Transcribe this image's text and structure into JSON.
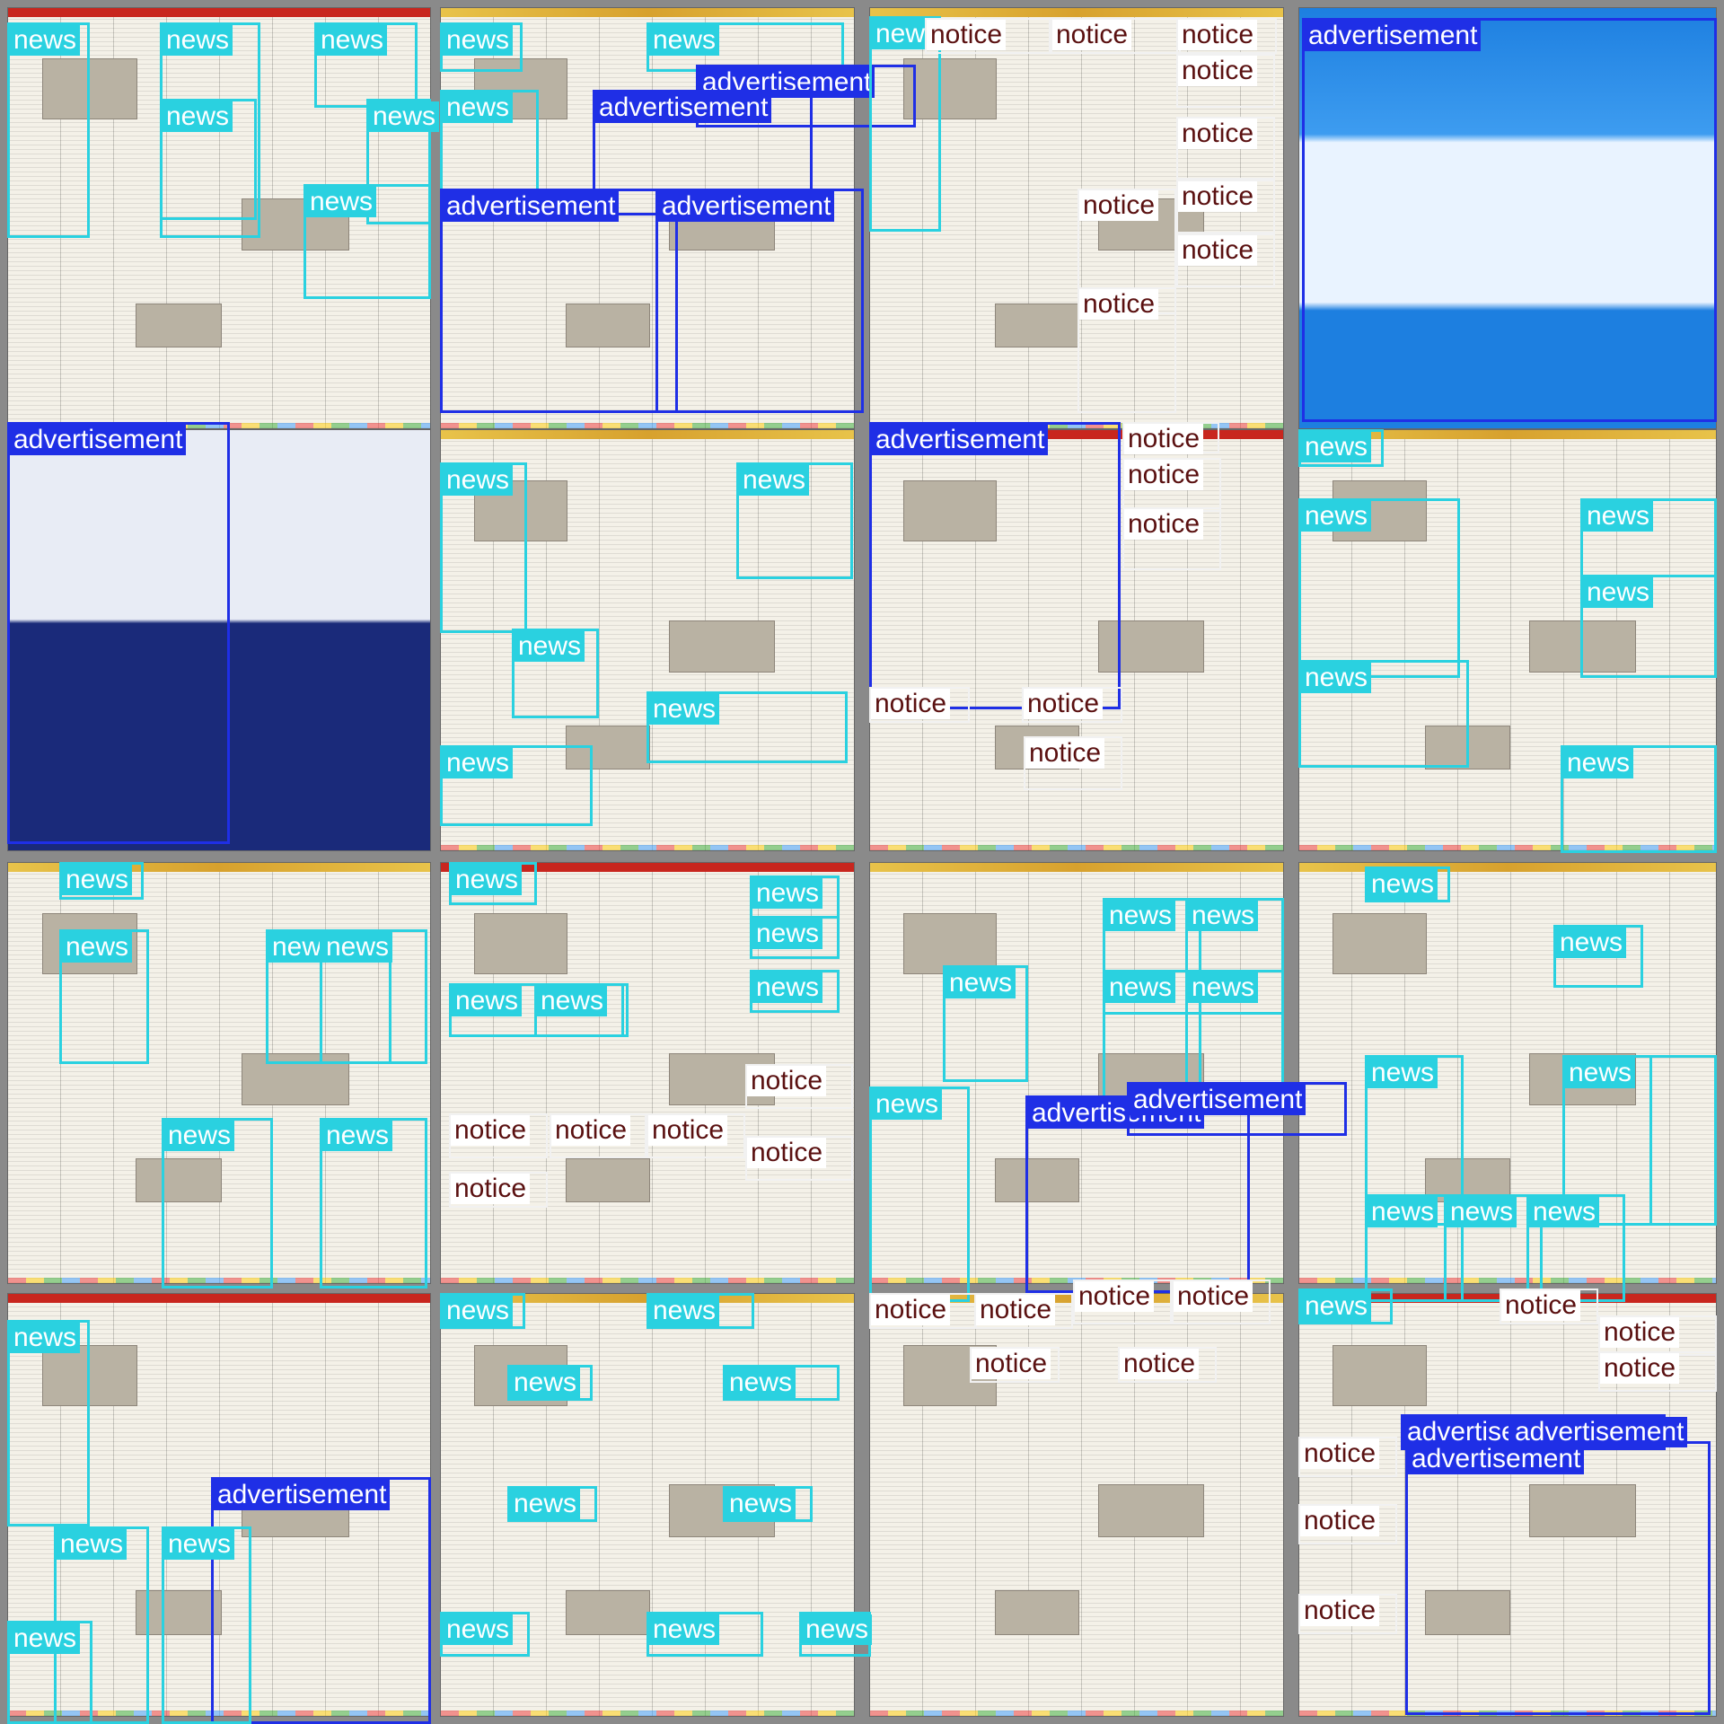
{
  "colors": {
    "background": "#8a8a8a",
    "news": "#2ad1e0",
    "advertisement": "#1f2fe6",
    "notice": "#ffffff",
    "notice_text": "#5a1010"
  },
  "labels": {
    "news": "news",
    "advertisement": "advertisement",
    "notice": "notice"
  }
}
